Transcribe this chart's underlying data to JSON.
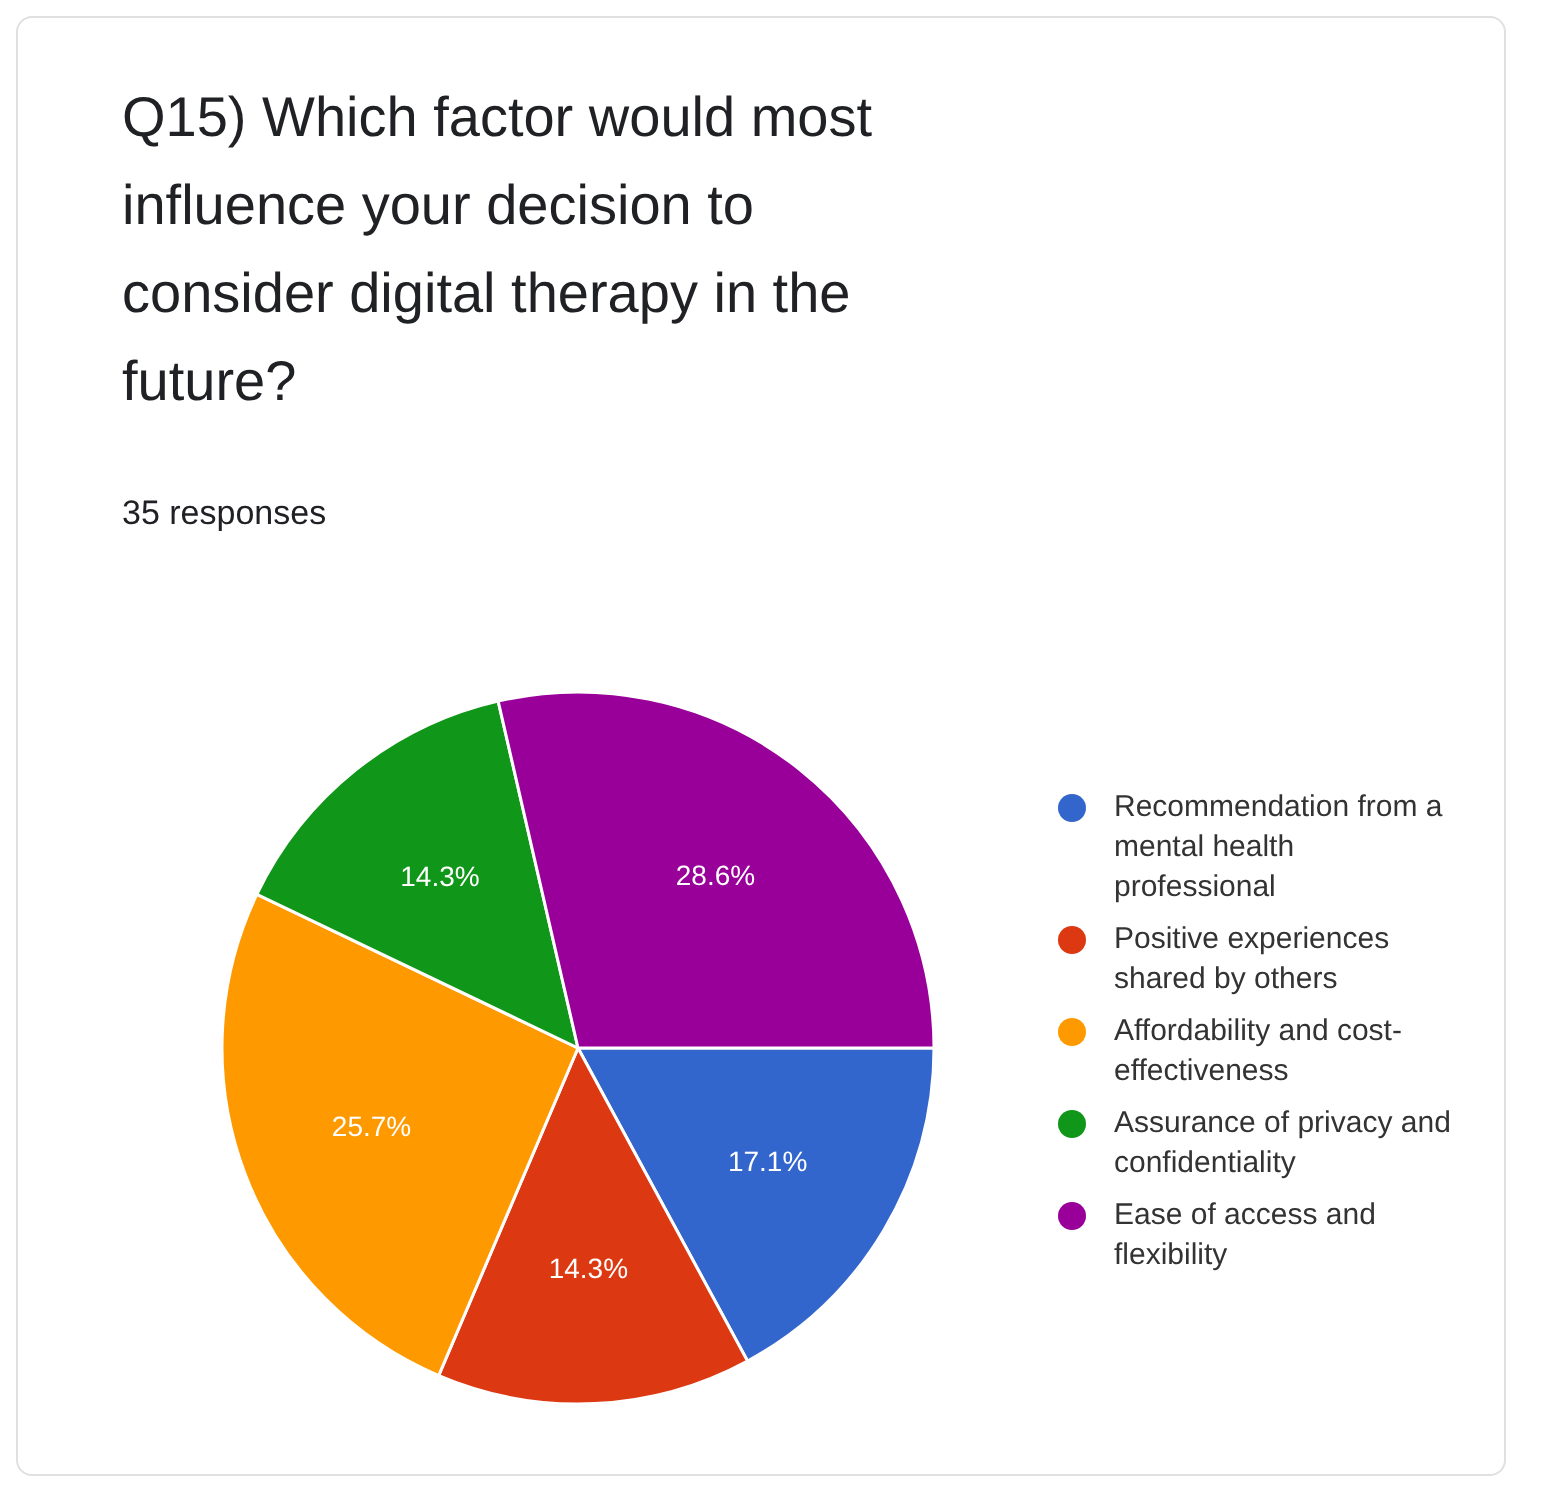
{
  "chart_data": {
    "type": "pie",
    "title": "Q15) Which factor would most influence your decision to consider digital therapy in the future?",
    "subtitle": "35 responses",
    "categories": [
      "Recommendation from a mental health professional",
      "Positive experiences shared by others",
      "Affordability and cost-effectiveness",
      "Assurance of privacy and confidentiality",
      "Ease of access and flexibility"
    ],
    "values": [
      17.1,
      14.3,
      25.7,
      14.3,
      28.6
    ],
    "value_labels": [
      "17.1%",
      "14.3%",
      "25.7%",
      "14.3%",
      "28.6%"
    ],
    "colors": [
      "#3366cc",
      "#dc3912",
      "#ff9900",
      "#109618",
      "#990099"
    ],
    "legend": "right"
  }
}
